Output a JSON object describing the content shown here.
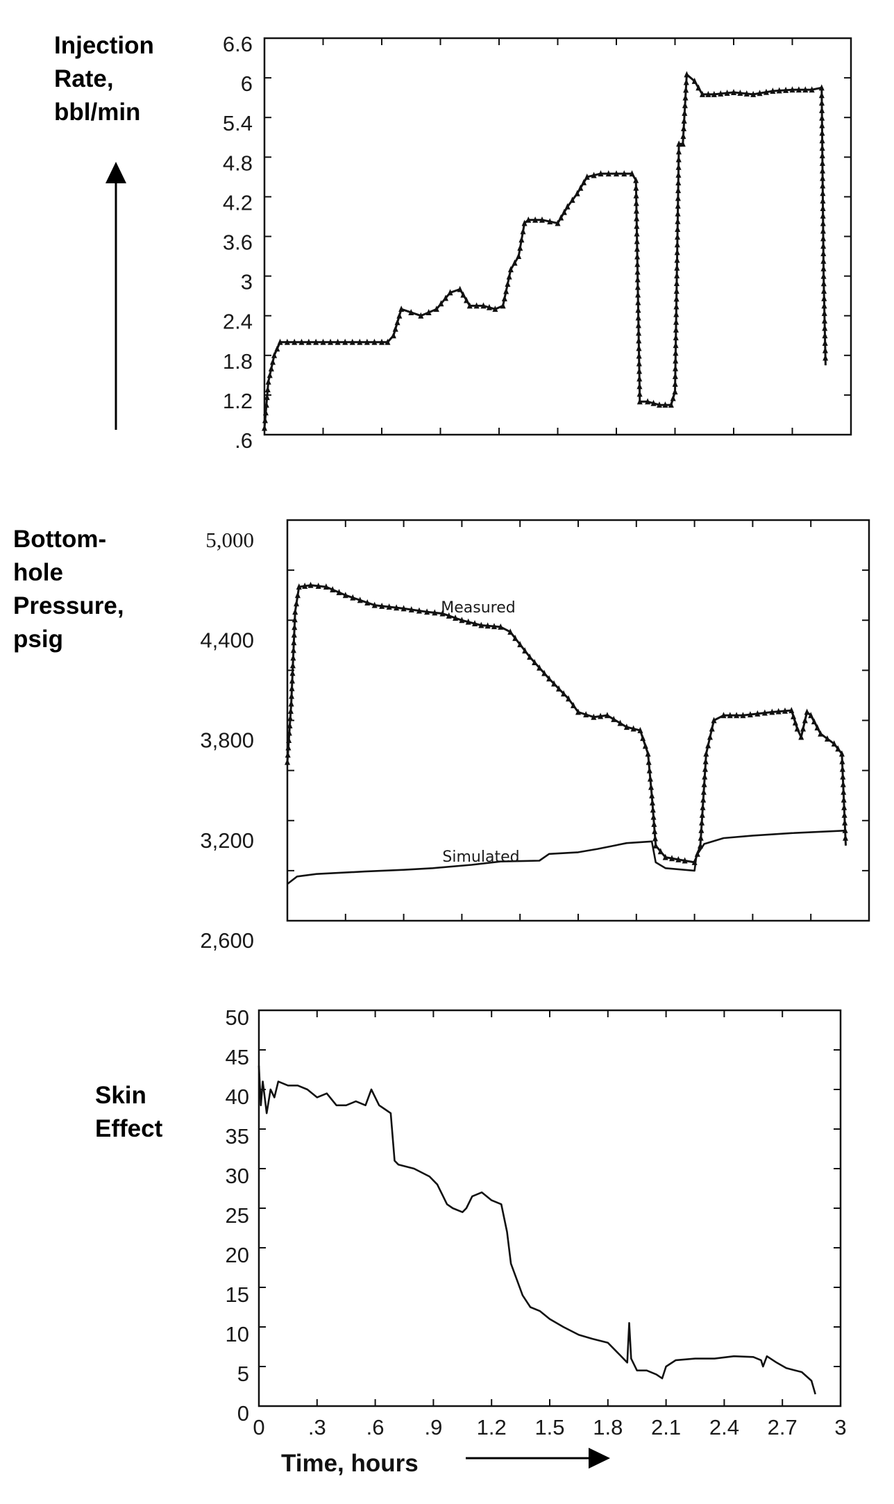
{
  "chart_data": [
    {
      "type": "line",
      "ylabel": [
        "Injection",
        "Rate,",
        "bbl/min"
      ],
      "ylim": [
        0.6,
        6.6
      ],
      "xlim": [
        0,
        3
      ],
      "ytick_labels": [
        "6.6",
        "6",
        "5.4",
        "4.8",
        "4.2",
        "3.6",
        "3",
        "2.4",
        "1.8",
        "1.2",
        ".6"
      ],
      "ytick_values": [
        6.6,
        6,
        5.4,
        4.8,
        4.2,
        3.6,
        3,
        2.4,
        1.8,
        1.2,
        0.6
      ],
      "markers": "triangle",
      "series": [
        {
          "x": [
            0,
            0.02,
            0.05,
            0.08,
            0.3,
            0.6,
            0.63,
            0.66,
            0.7,
            0.75,
            0.8,
            0.88,
            0.95,
            1.0,
            1.05,
            1.12,
            1.18,
            1.22,
            1.26,
            1.3,
            1.33,
            1.35,
            1.42,
            1.5,
            1.55,
            1.6,
            1.65,
            1.72,
            1.8,
            1.88,
            1.9,
            1.92,
            1.96,
            2.02,
            2.08,
            2.1,
            2.12,
            2.14,
            2.16,
            2.2,
            2.24,
            2.3,
            2.4,
            2.5,
            2.6,
            2.7,
            2.8,
            2.85,
            2.86,
            2.87
          ],
          "y": [
            0.7,
            1.4,
            1.8,
            2.0,
            2.0,
            2.0,
            2.0,
            2.1,
            2.5,
            2.45,
            2.4,
            2.5,
            2.75,
            2.8,
            2.55,
            2.55,
            2.5,
            2.55,
            3.1,
            3.3,
            3.8,
            3.85,
            3.85,
            3.8,
            4.05,
            4.25,
            4.5,
            4.55,
            4.55,
            4.55,
            4.45,
            1.1,
            1.1,
            1.05,
            1.05,
            1.25,
            5.0,
            5.0,
            6.05,
            5.95,
            5.75,
            5.75,
            5.78,
            5.75,
            5.8,
            5.82,
            5.82,
            5.85,
            3.0,
            1.65
          ]
        }
      ]
    },
    {
      "type": "line",
      "ylabel": [
        "Bottom-",
        "hole",
        "Pressure,",
        "psig"
      ],
      "ylim": [
        2600,
        5000
      ],
      "xlim": [
        0,
        3
      ],
      "ytick_labels": [
        "5,000",
        "4,400",
        "3,800",
        "3,200",
        "2,600"
      ],
      "ytick_values": [
        5000,
        4400,
        3800,
        3200,
        2600
      ],
      "series": [
        {
          "name": "Measured",
          "markers": "triangle",
          "x": [
            0,
            0.02,
            0.04,
            0.06,
            0.12,
            0.2,
            0.3,
            0.45,
            0.6,
            0.72,
            0.8,
            0.9,
            1.0,
            1.1,
            1.15,
            1.25,
            1.35,
            1.45,
            1.5,
            1.58,
            1.65,
            1.75,
            1.82,
            1.86,
            1.88,
            1.9,
            1.95,
            2.05,
            2.1,
            2.13,
            2.16,
            2.2,
            2.25,
            2.35,
            2.5,
            2.6,
            2.63,
            2.65,
            2.68,
            2.7,
            2.75,
            2.82,
            2.86,
            2.88
          ],
          "y": [
            3550,
            3900,
            4450,
            4600,
            4610,
            4600,
            4550,
            4490,
            4470,
            4450,
            4440,
            4400,
            4370,
            4360,
            4330,
            4180,
            4050,
            3930,
            3850,
            3820,
            3830,
            3760,
            3740,
            3600,
            3350,
            3050,
            2980,
            2960,
            2950,
            3050,
            3600,
            3800,
            3830,
            3830,
            3850,
            3860,
            3750,
            3700,
            3850,
            3830,
            3720,
            3660,
            3600,
            3050
          ]
        },
        {
          "name": "Simulated",
          "x": [
            0,
            0.05,
            0.15,
            0.4,
            0.6,
            0.75,
            0.95,
            1.1,
            1.3,
            1.35,
            1.5,
            1.6,
            1.75,
            1.88,
            1.9,
            1.95,
            2.1,
            2.11,
            2.15,
            2.25,
            2.4,
            2.6,
            2.88
          ],
          "y": [
            2820,
            2865,
            2880,
            2895,
            2905,
            2915,
            2935,
            2955,
            2960,
            3000,
            3010,
            3030,
            3065,
            3075,
            2950,
            2915,
            2900,
            2990,
            3060,
            3095,
            3110,
            3125,
            3140
          ]
        }
      ],
      "annotations": [
        "Measured",
        "Simulated"
      ]
    },
    {
      "type": "line",
      "ylabel": [
        "Skin",
        "Effect"
      ],
      "xlabel": "Time, hours",
      "ylim": [
        0,
        50
      ],
      "xlim": [
        0,
        3
      ],
      "ytick_labels": [
        "50",
        "45",
        "40",
        "35",
        "30",
        "25",
        "20",
        "15",
        "10",
        "5",
        "0"
      ],
      "ytick_values": [
        50,
        45,
        40,
        35,
        30,
        25,
        20,
        15,
        10,
        5,
        0
      ],
      "xtick_labels": [
        "0",
        ".3",
        ".6",
        ".9",
        "1.2",
        "1.5",
        "1.8",
        "2.1",
        "2.4",
        "2.7",
        "3"
      ],
      "xtick_values": [
        0,
        0.3,
        0.6,
        0.9,
        1.2,
        1.5,
        1.8,
        2.1,
        2.4,
        2.7,
        3
      ],
      "series": [
        {
          "x": [
            0,
            0.01,
            0.02,
            0.04,
            0.06,
            0.08,
            0.1,
            0.15,
            0.2,
            0.25,
            0.3,
            0.35,
            0.4,
            0.45,
            0.5,
            0.55,
            0.58,
            0.6,
            0.62,
            0.65,
            0.68,
            0.7,
            0.72,
            0.8,
            0.88,
            0.92,
            0.97,
            1.0,
            1.05,
            1.07,
            1.1,
            1.15,
            1.2,
            1.25,
            1.28,
            1.3,
            1.33,
            1.36,
            1.4,
            1.45,
            1.5,
            1.57,
            1.65,
            1.72,
            1.8,
            1.86,
            1.9,
            1.91,
            1.92,
            1.95,
            2.0,
            2.05,
            2.08,
            2.1,
            2.15,
            2.25,
            2.35,
            2.45,
            2.55,
            2.59,
            2.6,
            2.62,
            2.67,
            2.72,
            2.8,
            2.85,
            2.87
          ],
          "y": [
            43,
            38,
            41,
            37,
            40,
            39,
            41,
            40.5,
            40.5,
            40,
            39,
            39.5,
            38,
            38,
            38.5,
            38,
            40,
            39,
            38,
            37.5,
            37,
            31,
            30.5,
            30,
            29,
            28,
            25.5,
            25,
            24.5,
            25,
            26.5,
            27,
            26,
            25.5,
            22,
            18,
            16,
            14,
            12.5,
            12,
            11,
            10,
            9,
            8.5,
            8,
            6.5,
            5.5,
            10.5,
            6,
            4.5,
            4.5,
            4,
            3.5,
            5,
            5.8,
            6,
            6,
            6.3,
            6.2,
            5.8,
            5,
            6.3,
            5.5,
            4.8,
            4.3,
            3.2,
            1.5
          ]
        }
      ]
    }
  ],
  "colors": {
    "ink": "#111111",
    "background": "#ffffff"
  }
}
